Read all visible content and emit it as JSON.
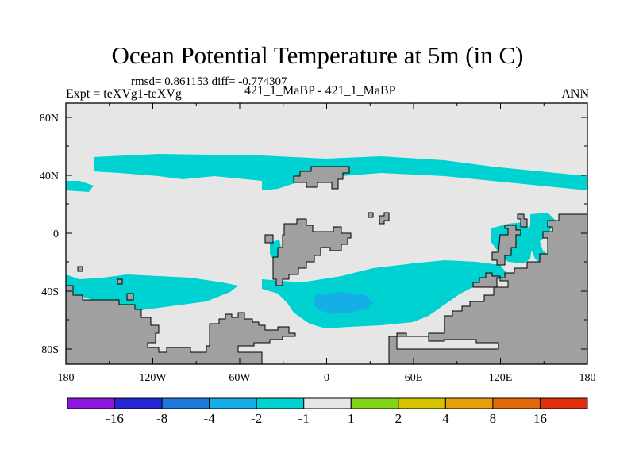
{
  "title": "Ocean Potential Temperature at 5m (in C)",
  "stats_line": "rmsd= 0.861153 diff= -0.774307",
  "experiment": "Expt = teXVg1-teXVg",
  "case_label": "421_1_MaBP - 421_1_MaBP",
  "season": "ANN",
  "chart_data": {
    "type": "heatmap",
    "title": "Ocean Potential Temperature at 5m (in C)",
    "x_ticks": [
      "180",
      "120W",
      "60W",
      "0",
      "60E",
      "120E",
      "180"
    ],
    "y_ticks": [
      "80N",
      "40N",
      "0",
      "40S",
      "80S"
    ],
    "xlim": [
      -180,
      180
    ],
    "ylim": [
      -90,
      90
    ],
    "colorbar": {
      "levels": [
        "-16",
        "-8",
        "-4",
        "-2",
        "-1",
        "1",
        "2",
        "4",
        "8",
        "16"
      ],
      "colors": [
        "#8f16e0",
        "#2626d4",
        "#1f78dc",
        "#16aee6",
        "#00d2d2",
        "#e6e6e6",
        "#84d416",
        "#d4c400",
        "#e6a00a",
        "#e06a0a",
        "#e03010"
      ]
    },
    "colors": {
      "background": "#e6e6e6",
      "land": "#a0a0a0",
      "band_minus1_minus2": "#00d2d2",
      "band_minus2_minus4": "#16aee6"
    }
  }
}
